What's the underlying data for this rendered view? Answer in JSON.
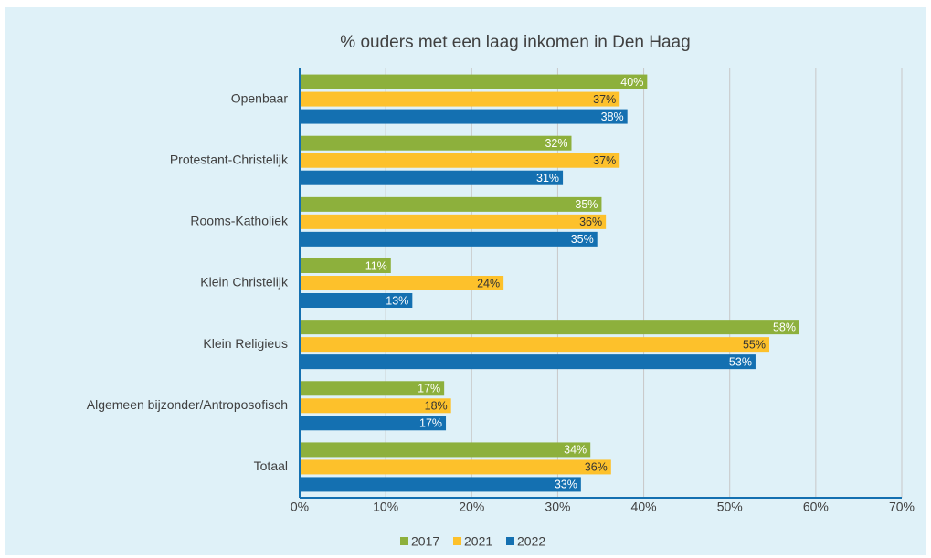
{
  "chart_data": {
    "type": "barh",
    "title": "% ouders met een laag inkomen in Den Haag",
    "categories": [
      "Openbaar",
      "Protestant-Christelijk",
      "Rooms-Katholiek",
      "Klein Christelijk",
      "Klein Religieus",
      "Algemeen bijzonder/Antroposofisch",
      "Totaal"
    ],
    "series": [
      {
        "name": "2017",
        "color": "#8db03c",
        "values": [
          40.4,
          31.6,
          35.1,
          10.6,
          58.1,
          16.8,
          33.8
        ],
        "value_labels": [
          "40%",
          "32%",
          "35%",
          "11%",
          "58%",
          "17%",
          "34%"
        ]
      },
      {
        "name": "2021",
        "color": "#fdc12b",
        "values": [
          37.2,
          37.2,
          35.6,
          23.7,
          54.6,
          17.6,
          36.2
        ],
        "value_labels": [
          "37%",
          "37%",
          "36%",
          "24%",
          "55%",
          "18%",
          "36%"
        ]
      },
      {
        "name": "2022",
        "color": "#1470b1",
        "values": [
          38.1,
          30.6,
          34.6,
          13.1,
          53.0,
          17.0,
          32.7
        ],
        "value_labels": [
          "38%",
          "31%",
          "35%",
          "13%",
          "53%",
          "17%",
          "33%"
        ]
      }
    ],
    "xlim": [
      0,
      70
    ],
    "xticks": [
      {
        "value": 0,
        "label": "0%"
      },
      {
        "value": 10,
        "label": "10%"
      },
      {
        "value": 20,
        "label": "20%"
      },
      {
        "value": 30,
        "label": "30%"
      },
      {
        "value": 40,
        "label": "40%"
      },
      {
        "value": 50,
        "label": "50%"
      },
      {
        "value": 60,
        "label": "60%"
      },
      {
        "value": 70,
        "label": "70%"
      }
    ],
    "grid": true,
    "legend": "bottom"
  }
}
